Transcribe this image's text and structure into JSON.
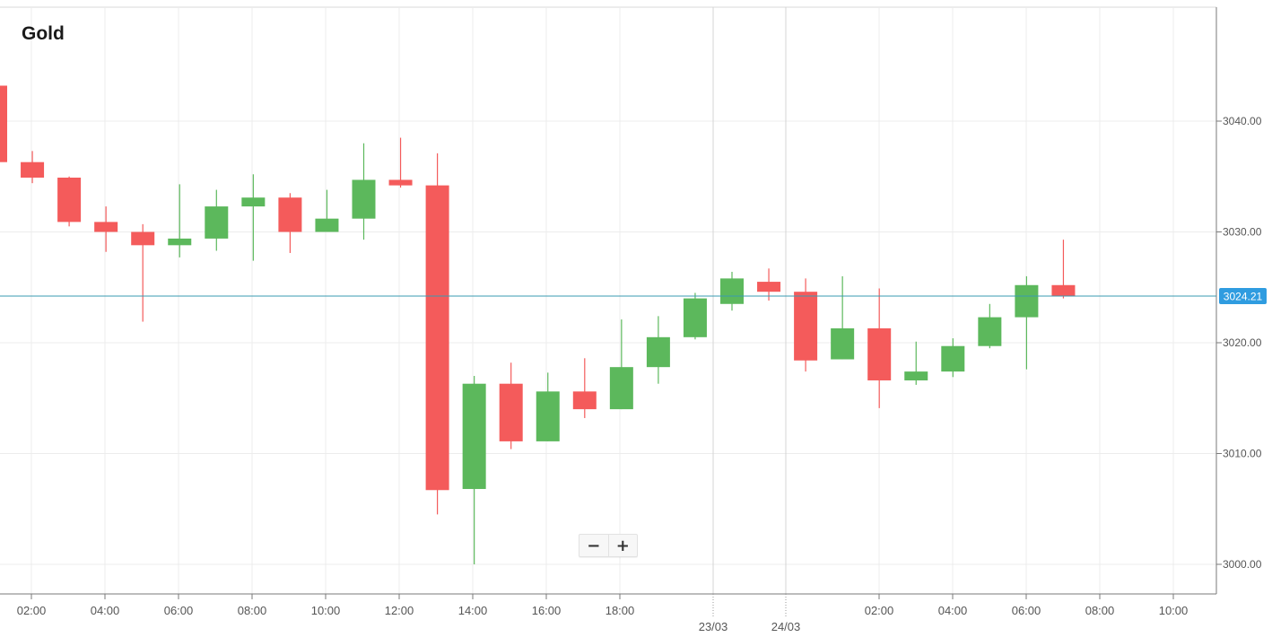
{
  "chart_data": {
    "type": "candlestick",
    "title": "Gold",
    "ylim": [
      2998,
      3050
    ],
    "y_ticks": [
      "3000.00",
      "3010.00",
      "3020.00",
      "3030.00",
      "3040.00"
    ],
    "x_tick_labels": [
      "02:00",
      "04:00",
      "06:00",
      "08:00",
      "10:00",
      "12:00",
      "14:00",
      "16:00",
      "18:00",
      "02:00",
      "04:00",
      "06:00",
      "08:00",
      "10:00"
    ],
    "date_labels": [
      "23/03",
      "24/03"
    ],
    "current_price": 3024.21,
    "current_price_label": "3024.21",
    "grid": true,
    "colors": {
      "up": "#5cb85c",
      "down": "#f45b5b",
      "price_line": "#3a9bb0",
      "price_badge": "#2f9ce0"
    },
    "candles": [
      {
        "o": 3043.2,
        "h": 3043.2,
        "l": 3036.3,
        "c": 3036.3
      },
      {
        "o": 3036.3,
        "h": 3037.3,
        "l": 3034.4,
        "c": 3034.9
      },
      {
        "o": 3034.9,
        "h": 3035.0,
        "l": 3030.5,
        "c": 3030.9
      },
      {
        "o": 3030.9,
        "h": 3032.3,
        "l": 3028.2,
        "c": 3030.0
      },
      {
        "o": 3030.0,
        "h": 3030.7,
        "l": 3021.9,
        "c": 3028.8
      },
      {
        "o": 3028.8,
        "h": 3034.3,
        "l": 3027.7,
        "c": 3029.4
      },
      {
        "o": 3029.4,
        "h": 3033.8,
        "l": 3028.3,
        "c": 3032.3
      },
      {
        "o": 3032.3,
        "h": 3035.2,
        "l": 3027.4,
        "c": 3033.1
      },
      {
        "o": 3033.1,
        "h": 3033.5,
        "l": 3028.1,
        "c": 3030.0
      },
      {
        "o": 3030.0,
        "h": 3033.8,
        "l": 3030.0,
        "c": 3031.2
      },
      {
        "o": 3031.2,
        "h": 3038.0,
        "l": 3029.3,
        "c": 3034.7
      },
      {
        "o": 3034.7,
        "h": 3038.5,
        "l": 3034.0,
        "c": 3034.2
      },
      {
        "o": 3034.2,
        "h": 3037.1,
        "l": 3004.5,
        "c": 3006.7
      },
      {
        "o": 3006.8,
        "h": 3017.0,
        "l": 3000.0,
        "c": 3016.3
      },
      {
        "o": 3016.3,
        "h": 3018.2,
        "l": 3010.4,
        "c": 3011.1
      },
      {
        "o": 3011.1,
        "h": 3017.3,
        "l": 3011.1,
        "c": 3015.6
      },
      {
        "o": 3015.6,
        "h": 3018.6,
        "l": 3013.2,
        "c": 3014.0
      },
      {
        "o": 3014.0,
        "h": 3022.1,
        "l": 3014.0,
        "c": 3017.8
      },
      {
        "o": 3017.8,
        "h": 3022.4,
        "l": 3016.3,
        "c": 3020.5
      },
      {
        "o": 3020.5,
        "h": 3024.5,
        "l": 3020.3,
        "c": 3024.0
      },
      {
        "o": 3023.5,
        "h": 3026.4,
        "l": 3022.9,
        "c": 3025.8
      },
      {
        "o": 3025.5,
        "h": 3026.7,
        "l": 3023.8,
        "c": 3024.6
      },
      {
        "o": 3024.6,
        "h": 3025.8,
        "l": 3017.4,
        "c": 3018.4
      },
      {
        "o": 3018.5,
        "h": 3026.0,
        "l": 3018.5,
        "c": 3021.3
      },
      {
        "o": 3021.3,
        "h": 3024.9,
        "l": 3014.1,
        "c": 3016.6
      },
      {
        "o": 3016.6,
        "h": 3020.1,
        "l": 3016.2,
        "c": 3017.4
      },
      {
        "o": 3017.4,
        "h": 3020.4,
        "l": 3016.9,
        "c": 3019.7
      },
      {
        "o": 3019.7,
        "h": 3023.5,
        "l": 3019.5,
        "c": 3022.3
      },
      {
        "o": 3022.3,
        "h": 3026.0,
        "l": 3017.6,
        "c": 3025.2
      },
      {
        "o": 3025.2,
        "h": 3029.3,
        "l": 3024.0,
        "c": 3024.2
      }
    ]
  },
  "zoom": {
    "minus_label": "−",
    "plus_label": "+"
  }
}
